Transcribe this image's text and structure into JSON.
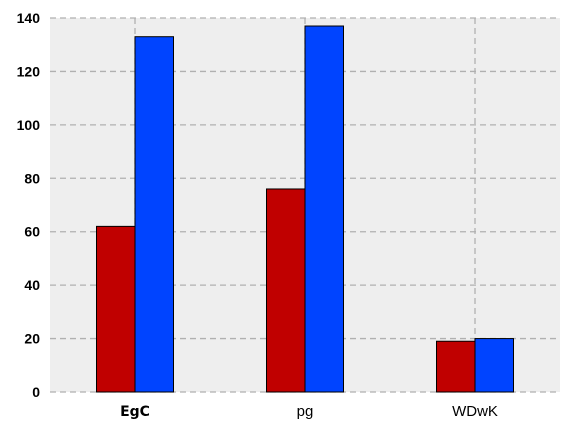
{
  "chart_data": {
    "type": "bar",
    "title": "",
    "xlabel": "",
    "ylabel": "",
    "categories": [
      "EgC",
      "pg",
      "WDwK"
    ],
    "series": [
      {
        "name": "series-1",
        "color": "#c00000",
        "values": [
          62,
          76,
          19
        ]
      },
      {
        "name": "series-2",
        "color": "#0044ff",
        "values": [
          133,
          137,
          20
        ]
      }
    ],
    "ylim": [
      0,
      140
    ],
    "yticks": [
      0,
      20,
      40,
      60,
      80,
      100,
      120,
      140
    ],
    "yticks_text": [
      "0",
      "20",
      "40",
      "60",
      "80",
      "100",
      "120",
      "140"
    ],
    "grid": true,
    "legend": "none",
    "background_color": "#eeeeee",
    "grid_color": "#b0b0b0"
  }
}
